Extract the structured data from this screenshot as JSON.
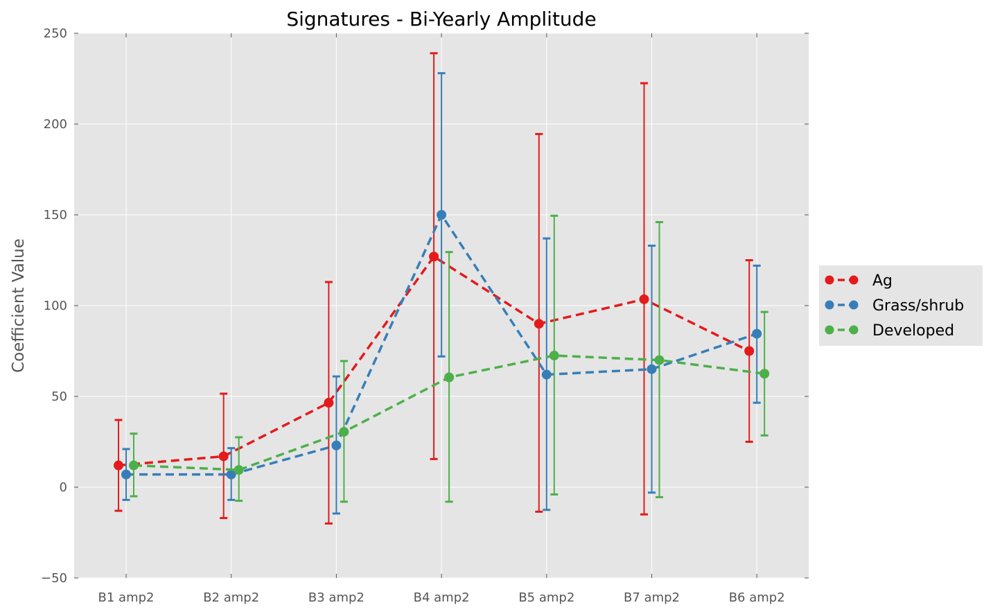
{
  "chart_data": {
    "type": "line",
    "title": "Signatures - Bi-Yearly Amplitude",
    "xlabel": "",
    "ylabel": "Coefficient Value",
    "categories": [
      "B1 amp2",
      "B2 amp2",
      "B3 amp2",
      "B4 amp2",
      "B5 amp2",
      "B7 amp2",
      "B6 amp2"
    ],
    "ylim": [
      -50,
      250
    ],
    "yticks": [
      -50,
      0,
      50,
      100,
      150,
      200,
      250
    ],
    "ytick_labels": [
      "−50",
      "0",
      "50",
      "100",
      "150",
      "200",
      "250"
    ],
    "grid": true,
    "legend_position": "right",
    "series": [
      {
        "name": "Ag",
        "color": "#e41a1c",
        "values": [
          12,
          17,
          46.5,
          127,
          90,
          103.5,
          75
        ],
        "err_low": [
          -13,
          -17,
          -20,
          15.5,
          -13.5,
          -15,
          25
        ],
        "err_high": [
          37,
          51.5,
          113,
          239,
          194.5,
          222.5,
          125
        ]
      },
      {
        "name": "Grass/shrub",
        "color": "#377eb8",
        "values": [
          7,
          7,
          23,
          150,
          62,
          65,
          84.5
        ],
        "err_low": [
          -7,
          -7,
          -14.5,
          72,
          -12.5,
          -3,
          46.5
        ],
        "err_high": [
          21,
          21.5,
          61,
          228,
          137,
          133,
          122
        ]
      },
      {
        "name": "Developed",
        "color": "#4daf4a",
        "values": [
          12,
          9.5,
          30.5,
          60.5,
          72.5,
          70,
          62.5
        ],
        "err_low": [
          -5,
          -7.5,
          -8,
          -8,
          -4,
          -5.5,
          28.5
        ],
        "err_high": [
          29.5,
          27.5,
          69.5,
          129.5,
          149.5,
          146,
          96.5
        ]
      }
    ]
  }
}
